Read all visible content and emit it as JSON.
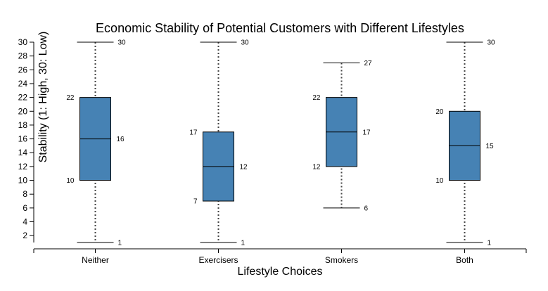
{
  "chart_data": {
    "type": "box",
    "title": "Economic Stability of Potential Customers with Different Lifestyles",
    "xlabel": "Lifestyle Choices",
    "ylabel": "Stability (1: High, 30: Low)",
    "ylim": [
      1,
      30
    ],
    "yticks": [
      2,
      4,
      6,
      8,
      10,
      12,
      14,
      16,
      18,
      20,
      22,
      24,
      26,
      28,
      30
    ],
    "categories": [
      "Neither",
      "Exercisers",
      "Smokers",
      "Both"
    ],
    "boxes": [
      {
        "category": "Neither",
        "min": 1,
        "q1": 10,
        "median": 16,
        "q3": 22,
        "max": 30
      },
      {
        "category": "Exercisers",
        "min": 1,
        "q1": 7,
        "median": 12,
        "q3": 17,
        "max": 30
      },
      {
        "category": "Smokers",
        "min": 6,
        "q1": 12,
        "median": 17,
        "q3": 22,
        "max": 27
      },
      {
        "category": "Both",
        "min": 1,
        "q1": 10,
        "median": 15,
        "q3": 20,
        "max": 30
      }
    ],
    "box_color": "#4682b4",
    "grid": false
  }
}
